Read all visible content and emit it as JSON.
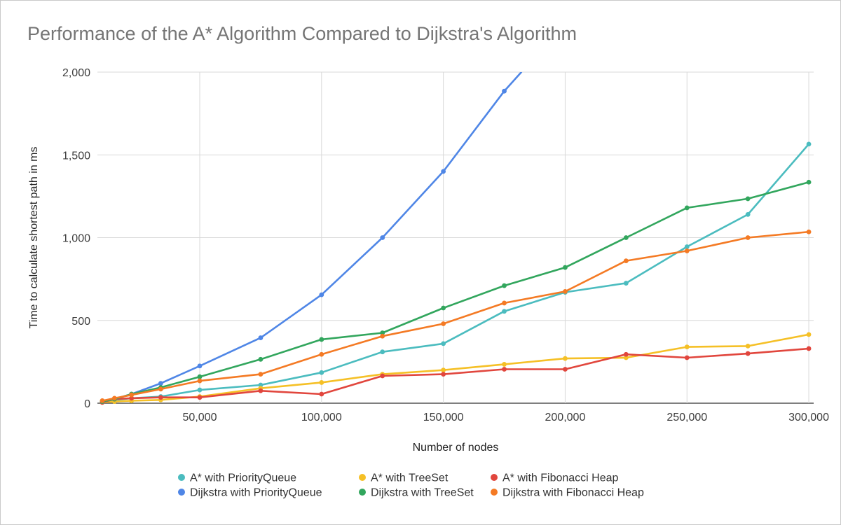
{
  "chart_data": {
    "type": "line",
    "title": "Performance of the A* Algorithm Compared to Dijkstra's Algorithm",
    "xlabel": "Number of nodes",
    "ylabel": "Time to calculate shortest path in ms",
    "xlim": [
      8000,
      302000
    ],
    "ylim": [
      0,
      2000
    ],
    "xticks": [
      50000,
      100000,
      150000,
      200000,
      250000,
      300000
    ],
    "xtick_labels": [
      "50,000",
      "100,000",
      "150,000",
      "200,000",
      "250,000",
      "300,000"
    ],
    "yticks": [
      0,
      500,
      1000,
      1500,
      2000
    ],
    "ytick_labels": [
      "0",
      "500",
      "1,000",
      "1,500",
      "2,000"
    ],
    "grid": true,
    "legend_position": "bottom",
    "series": [
      {
        "name": "A* with PriorityQueue",
        "color": "#4bbcbf",
        "x": [
          10000,
          15000,
          22000,
          34000,
          50000,
          75000,
          100000,
          125000,
          150000,
          175000,
          200000,
          225000,
          250000,
          275000,
          300000
        ],
        "y": [
          10,
          20,
          30,
          40,
          80,
          110,
          185,
          310,
          360,
          555,
          670,
          725,
          945,
          1140,
          1565
        ]
      },
      {
        "name": "A* with TreeSet",
        "color": "#f5c026",
        "x": [
          10000,
          15000,
          22000,
          34000,
          50000,
          75000,
          100000,
          125000,
          150000,
          175000,
          200000,
          225000,
          250000,
          275000,
          300000
        ],
        "y": [
          5,
          10,
          15,
          20,
          40,
          90,
          125,
          175,
          200,
          235,
          270,
          275,
          340,
          345,
          415
        ]
      },
      {
        "name": "A* with Fibonacci Heap",
        "color": "#e1463d",
        "x": [
          10000,
          15000,
          22000,
          34000,
          50000,
          75000,
          100000,
          125000,
          150000,
          175000,
          200000,
          225000,
          250000,
          275000,
          300000
        ],
        "y": [
          5,
          25,
          30,
          35,
          35,
          75,
          55,
          165,
          175,
          205,
          205,
          295,
          275,
          300,
          330
        ]
      },
      {
        "name": "Dijkstra with PriorityQueue",
        "color": "#4f86e6",
        "x": [
          10000,
          15000,
          22000,
          34000,
          50000,
          75000,
          100000,
          125000,
          150000,
          175000,
          182000
        ],
        "y": [
          10,
          25,
          55,
          120,
          225,
          395,
          655,
          1000,
          1400,
          1885,
          2000
        ]
      },
      {
        "name": "Dijkstra with TreeSet",
        "color": "#32a65d",
        "x": [
          10000,
          15000,
          22000,
          34000,
          50000,
          75000,
          100000,
          125000,
          150000,
          175000,
          200000,
          225000,
          250000,
          275000,
          300000
        ],
        "y": [
          10,
          25,
          55,
          95,
          160,
          265,
          385,
          425,
          575,
          710,
          820,
          1000,
          1180,
          1235,
          1335
        ]
      },
      {
        "name": "Dijkstra with Fibonacci Heap",
        "color": "#f47a24",
        "x": [
          10000,
          15000,
          22000,
          34000,
          50000,
          75000,
          100000,
          125000,
          150000,
          175000,
          200000,
          225000,
          250000,
          275000,
          300000
        ],
        "y": [
          15,
          30,
          50,
          85,
          135,
          175,
          295,
          405,
          480,
          605,
          675,
          860,
          920,
          1000,
          1035
        ]
      }
    ]
  }
}
